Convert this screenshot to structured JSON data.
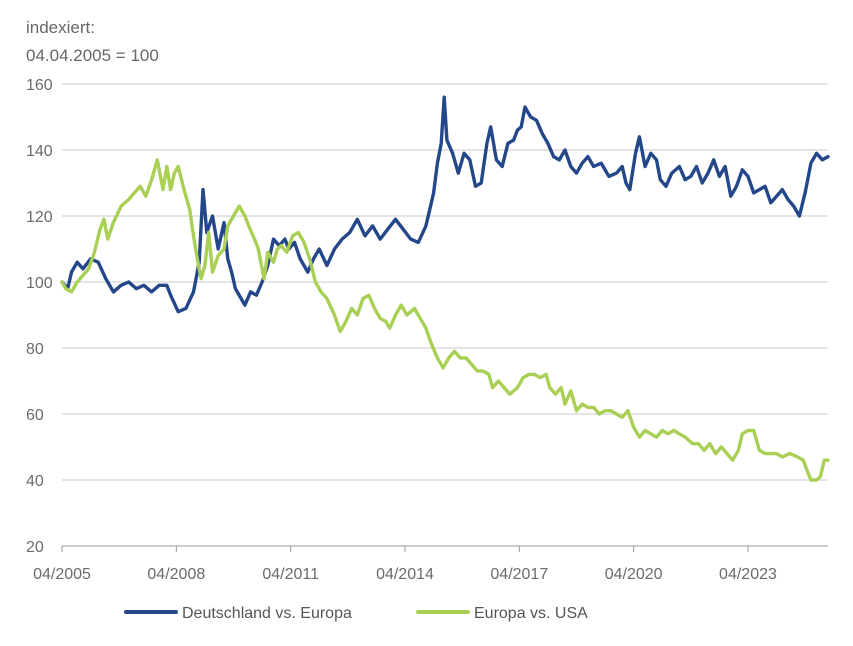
{
  "unit_label_line1": "indexiert:",
  "unit_label_line2": "04.04.2005 = 100",
  "chart_data": {
    "type": "line",
    "title": "",
    "xlabel": "",
    "ylabel": "indexiert: 04.04.2005 = 100",
    "ylim": [
      20,
      160
    ],
    "yticks": [
      "20",
      "40",
      "60",
      "80",
      "100",
      "120",
      "140",
      "160"
    ],
    "xlim": [
      2005.25,
      2025.35
    ],
    "xticks": [
      {
        "label": "04/2005",
        "x": 2005.25
      },
      {
        "label": "04/2008",
        "x": 2008.25
      },
      {
        "label": "04/2011",
        "x": 2011.25
      },
      {
        "label": "04/2014",
        "x": 2014.25
      },
      {
        "label": "04/2017",
        "x": 2017.25
      },
      {
        "label": "04/2020",
        "x": 2020.25
      },
      {
        "label": "04/2023",
        "x": 2023.25
      }
    ],
    "grid": "horizontal",
    "legend_position": "bottom",
    "series": [
      {
        "name": "Deutschland vs. Europa",
        "color": "#24478a",
        "points": [
          [
            2005.25,
            100
          ],
          [
            2005.4,
            98
          ],
          [
            2005.5,
            103
          ],
          [
            2005.65,
            106
          ],
          [
            2005.8,
            104
          ],
          [
            2006.0,
            107
          ],
          [
            2006.2,
            106
          ],
          [
            2006.4,
            101
          ],
          [
            2006.6,
            97
          ],
          [
            2006.8,
            99
          ],
          [
            2007.0,
            100
          ],
          [
            2007.2,
            98
          ],
          [
            2007.4,
            99
          ],
          [
            2007.6,
            97
          ],
          [
            2007.8,
            99
          ],
          [
            2008.0,
            99
          ],
          [
            2008.1,
            96
          ],
          [
            2008.3,
            91
          ],
          [
            2008.5,
            92
          ],
          [
            2008.7,
            97
          ],
          [
            2008.85,
            106
          ],
          [
            2008.95,
            128
          ],
          [
            2009.05,
            115
          ],
          [
            2009.2,
            120
          ],
          [
            2009.35,
            110
          ],
          [
            2009.5,
            118
          ],
          [
            2009.6,
            107
          ],
          [
            2009.7,
            103
          ],
          [
            2009.8,
            98
          ],
          [
            2009.95,
            95
          ],
          [
            2010.05,
            93
          ],
          [
            2010.2,
            97
          ],
          [
            2010.35,
            96
          ],
          [
            2010.5,
            100
          ],
          [
            2010.65,
            105
          ],
          [
            2010.8,
            113
          ],
          [
            2010.95,
            111
          ],
          [
            2011.1,
            113
          ],
          [
            2011.2,
            110
          ],
          [
            2011.35,
            112
          ],
          [
            2011.5,
            107
          ],
          [
            2011.7,
            103
          ],
          [
            2011.85,
            107
          ],
          [
            2012.0,
            110
          ],
          [
            2012.2,
            105
          ],
          [
            2012.4,
            110
          ],
          [
            2012.6,
            113
          ],
          [
            2012.8,
            115
          ],
          [
            2013.0,
            119
          ],
          [
            2013.2,
            114
          ],
          [
            2013.4,
            117
          ],
          [
            2013.6,
            113
          ],
          [
            2013.8,
            116
          ],
          [
            2014.0,
            119
          ],
          [
            2014.2,
            116
          ],
          [
            2014.4,
            113
          ],
          [
            2014.6,
            112
          ],
          [
            2014.8,
            117
          ],
          [
            2014.9,
            122
          ],
          [
            2015.0,
            127
          ],
          [
            2015.1,
            136
          ],
          [
            2015.2,
            142
          ],
          [
            2015.28,
            156
          ],
          [
            2015.35,
            143
          ],
          [
            2015.5,
            139
          ],
          [
            2015.65,
            133
          ],
          [
            2015.8,
            139
          ],
          [
            2015.95,
            137
          ],
          [
            2016.1,
            129
          ],
          [
            2016.25,
            130
          ],
          [
            2016.4,
            142
          ],
          [
            2016.5,
            147
          ],
          [
            2016.65,
            137
          ],
          [
            2016.8,
            135
          ],
          [
            2016.95,
            142
          ],
          [
            2017.1,
            143
          ],
          [
            2017.2,
            146
          ],
          [
            2017.3,
            147
          ],
          [
            2017.4,
            153
          ],
          [
            2017.55,
            150
          ],
          [
            2017.7,
            149
          ],
          [
            2017.85,
            145
          ],
          [
            2018.0,
            142
          ],
          [
            2018.15,
            138
          ],
          [
            2018.3,
            137
          ],
          [
            2018.45,
            140
          ],
          [
            2018.6,
            135
          ],
          [
            2018.75,
            133
          ],
          [
            2018.9,
            136
          ],
          [
            2019.05,
            138
          ],
          [
            2019.2,
            135
          ],
          [
            2019.4,
            136
          ],
          [
            2019.6,
            132
          ],
          [
            2019.8,
            133
          ],
          [
            2019.95,
            135
          ],
          [
            2020.05,
            130
          ],
          [
            2020.15,
            128
          ],
          [
            2020.3,
            139
          ],
          [
            2020.4,
            144
          ],
          [
            2020.55,
            135
          ],
          [
            2020.7,
            139
          ],
          [
            2020.85,
            137
          ],
          [
            2020.95,
            131
          ],
          [
            2021.1,
            129
          ],
          [
            2021.25,
            133
          ],
          [
            2021.45,
            135
          ],
          [
            2021.6,
            131
          ],
          [
            2021.75,
            132
          ],
          [
            2021.9,
            135
          ],
          [
            2022.05,
            130
          ],
          [
            2022.2,
            133
          ],
          [
            2022.35,
            137
          ],
          [
            2022.5,
            132
          ],
          [
            2022.65,
            135
          ],
          [
            2022.8,
            126
          ],
          [
            2022.95,
            129
          ],
          [
            2023.1,
            134
          ],
          [
            2023.25,
            132
          ],
          [
            2023.4,
            127
          ],
          [
            2023.55,
            128
          ],
          [
            2023.7,
            129
          ],
          [
            2023.85,
            124
          ],
          [
            2024.0,
            126
          ],
          [
            2024.15,
            128
          ],
          [
            2024.3,
            125
          ],
          [
            2024.45,
            123
          ],
          [
            2024.6,
            120
          ],
          [
            2024.75,
            127
          ],
          [
            2024.9,
            136
          ],
          [
            2025.05,
            139
          ],
          [
            2025.2,
            137
          ],
          [
            2025.35,
            138
          ]
        ]
      },
      {
        "name": "Europa vs. USA",
        "color": "#a9cf54",
        "points": [
          [
            2005.25,
            100
          ],
          [
            2005.35,
            98
          ],
          [
            2005.5,
            97
          ],
          [
            2005.65,
            100
          ],
          [
            2005.8,
            102
          ],
          [
            2005.95,
            104
          ],
          [
            2006.1,
            109
          ],
          [
            2006.25,
            116
          ],
          [
            2006.35,
            119
          ],
          [
            2006.45,
            113
          ],
          [
            2006.6,
            118
          ],
          [
            2006.8,
            123
          ],
          [
            2007.0,
            125
          ],
          [
            2007.15,
            127
          ],
          [
            2007.3,
            129
          ],
          [
            2007.45,
            126
          ],
          [
            2007.6,
            131
          ],
          [
            2007.75,
            137
          ],
          [
            2007.9,
            128
          ],
          [
            2008.0,
            135
          ],
          [
            2008.1,
            128
          ],
          [
            2008.2,
            133
          ],
          [
            2008.3,
            135
          ],
          [
            2008.45,
            128
          ],
          [
            2008.6,
            122
          ],
          [
            2008.7,
            114
          ],
          [
            2008.8,
            107
          ],
          [
            2008.9,
            101
          ],
          [
            2009.0,
            105
          ],
          [
            2009.1,
            115
          ],
          [
            2009.2,
            103
          ],
          [
            2009.35,
            108
          ],
          [
            2009.5,
            110
          ],
          [
            2009.6,
            117
          ],
          [
            2009.75,
            120
          ],
          [
            2009.9,
            123
          ],
          [
            2010.05,
            120
          ],
          [
            2010.15,
            117
          ],
          [
            2010.3,
            113
          ],
          [
            2010.4,
            110
          ],
          [
            2010.55,
            101
          ],
          [
            2010.65,
            109
          ],
          [
            2010.8,
            106
          ],
          [
            2010.9,
            110
          ],
          [
            2011.0,
            111
          ],
          [
            2011.15,
            109
          ],
          [
            2011.3,
            114
          ],
          [
            2011.45,
            115
          ],
          [
            2011.6,
            112
          ],
          [
            2011.75,
            107
          ],
          [
            2011.9,
            100
          ],
          [
            2012.05,
            97
          ],
          [
            2012.2,
            95
          ],
          [
            2012.4,
            90
          ],
          [
            2012.55,
            85
          ],
          [
            2012.7,
            88
          ],
          [
            2012.85,
            92
          ],
          [
            2013.0,
            90
          ],
          [
            2013.15,
            95
          ],
          [
            2013.3,
            96
          ],
          [
            2013.45,
            92
          ],
          [
            2013.6,
            89
          ],
          [
            2013.75,
            88
          ],
          [
            2013.85,
            86
          ],
          [
            2014.0,
            90
          ],
          [
            2014.15,
            93
          ],
          [
            2014.3,
            90
          ],
          [
            2014.5,
            92
          ],
          [
            2014.65,
            89
          ],
          [
            2014.8,
            86
          ],
          [
            2014.95,
            81
          ],
          [
            2015.1,
            77
          ],
          [
            2015.25,
            74
          ],
          [
            2015.4,
            77
          ],
          [
            2015.55,
            79
          ],
          [
            2015.7,
            77
          ],
          [
            2015.85,
            77
          ],
          [
            2016.0,
            75
          ],
          [
            2016.15,
            73
          ],
          [
            2016.3,
            73
          ],
          [
            2016.45,
            72
          ],
          [
            2016.55,
            68
          ],
          [
            2016.7,
            70
          ],
          [
            2016.85,
            68
          ],
          [
            2017.0,
            66
          ],
          [
            2017.2,
            68
          ],
          [
            2017.35,
            71
          ],
          [
            2017.5,
            72
          ],
          [
            2017.65,
            72
          ],
          [
            2017.8,
            71
          ],
          [
            2017.95,
            72
          ],
          [
            2018.05,
            68
          ],
          [
            2018.2,
            66
          ],
          [
            2018.35,
            68
          ],
          [
            2018.45,
            63
          ],
          [
            2018.6,
            67
          ],
          [
            2018.75,
            61
          ],
          [
            2018.9,
            63
          ],
          [
            2019.05,
            62
          ],
          [
            2019.2,
            62
          ],
          [
            2019.35,
            60
          ],
          [
            2019.5,
            61
          ],
          [
            2019.65,
            61
          ],
          [
            2019.8,
            60
          ],
          [
            2019.95,
            59
          ],
          [
            2020.1,
            61
          ],
          [
            2020.25,
            56
          ],
          [
            2020.4,
            53
          ],
          [
            2020.55,
            55
          ],
          [
            2020.7,
            54
          ],
          [
            2020.85,
            53
          ],
          [
            2021.0,
            55
          ],
          [
            2021.15,
            54
          ],
          [
            2021.3,
            55
          ],
          [
            2021.45,
            54
          ],
          [
            2021.6,
            53
          ],
          [
            2021.8,
            51
          ],
          [
            2021.95,
            51
          ],
          [
            2022.1,
            49
          ],
          [
            2022.25,
            51
          ],
          [
            2022.4,
            48
          ],
          [
            2022.55,
            50
          ],
          [
            2022.7,
            48
          ],
          [
            2022.85,
            46
          ],
          [
            2023.0,
            49
          ],
          [
            2023.1,
            54
          ],
          [
            2023.25,
            55
          ],
          [
            2023.4,
            55
          ],
          [
            2023.55,
            49
          ],
          [
            2023.7,
            48
          ],
          [
            2023.85,
            48
          ],
          [
            2024.0,
            48
          ],
          [
            2024.15,
            47
          ],
          [
            2024.35,
            48
          ],
          [
            2024.55,
            47
          ],
          [
            2024.7,
            46
          ],
          [
            2024.8,
            43
          ],
          [
            2024.9,
            40
          ],
          [
            2025.05,
            40
          ],
          [
            2025.15,
            41
          ],
          [
            2025.25,
            46
          ],
          [
            2025.35,
            46
          ]
        ]
      }
    ]
  }
}
